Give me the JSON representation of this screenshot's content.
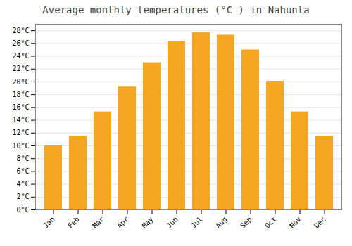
{
  "chart_data": {
    "type": "bar",
    "title": "Average monthly temperatures (°C ) in Nahunta",
    "categories": [
      "Jan",
      "Feb",
      "Mar",
      "Apr",
      "May",
      "Jun",
      "Jul",
      "Aug",
      "Sep",
      "Oct",
      "Nov",
      "Dec"
    ],
    "values": [
      10.0,
      11.5,
      15.3,
      19.2,
      23.0,
      26.3,
      27.7,
      27.3,
      25.0,
      20.1,
      15.3,
      11.5
    ],
    "color": "#F5A623",
    "ylim": [
      0,
      29
    ],
    "yticks": [
      {
        "value": 0,
        "label": "0°C"
      },
      {
        "value": 2,
        "label": "2°C"
      },
      {
        "value": 4,
        "label": "4°C"
      },
      {
        "value": 6,
        "label": "6°C"
      },
      {
        "value": 8,
        "label": "8°C"
      },
      {
        "value": 10,
        "label": "10°C"
      },
      {
        "value": 12,
        "label": "12°C"
      },
      {
        "value": 14,
        "label": "14°C"
      },
      {
        "value": 16,
        "label": "16°C"
      },
      {
        "value": 18,
        "label": "18°C"
      },
      {
        "value": 20,
        "label": "20°C"
      },
      {
        "value": 22,
        "label": "22°C"
      },
      {
        "value": 24,
        "label": "24°C"
      },
      {
        "value": 26,
        "label": "26°C"
      },
      {
        "value": 28,
        "label": "28°C"
      }
    ],
    "grid": true
  }
}
